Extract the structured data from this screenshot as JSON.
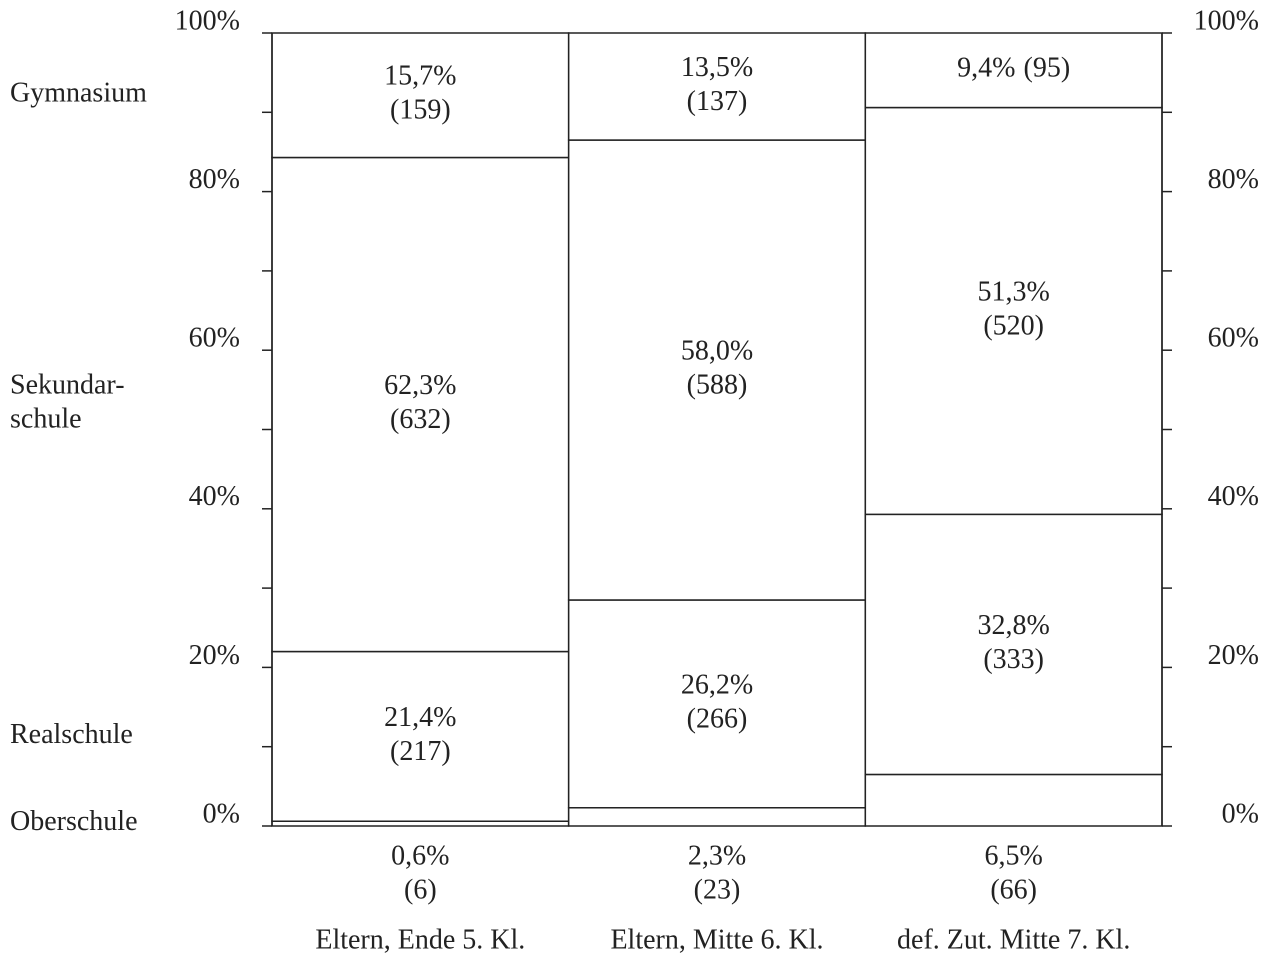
{
  "chart_data": {
    "type": "stacked_bar_100",
    "categories": [
      "Eltern, Ende 5. Kl.",
      "Eltern, Mitte 6. Kl.",
      "def. Zut. Mitte 7. Kl."
    ],
    "series": [
      {
        "name": "Oberschule",
        "color": "#ffffff",
        "values": [
          0.6,
          2.3,
          6.5
        ],
        "value_labels": [
          "0,6%",
          "2,3%",
          "6,5%"
        ],
        "count_labels": [
          "(6)",
          "(23)",
          "(66)"
        ],
        "label_position": "below"
      },
      {
        "name": "Realschule",
        "color": "#ffffff",
        "values": [
          21.4,
          26.2,
          32.8
        ],
        "value_labels": [
          "21,4%",
          "26,2%",
          "32,8%"
        ],
        "count_labels": [
          "(217)",
          "(266)",
          "(333)"
        ],
        "label_position": "inside"
      },
      {
        "name": "Sekundar-\nschule",
        "color": "#ffffff",
        "values": [
          62.3,
          58.0,
          51.3
        ],
        "value_labels": [
          "62,3%",
          "58,0%",
          "51,3%"
        ],
        "count_labels": [
          "(632)",
          "(588)",
          "(520)"
        ],
        "label_position": "inside"
      },
      {
        "name": "Gymnasium",
        "color": "#ffffff",
        "values": [
          15.7,
          13.5,
          9.4
        ],
        "value_labels": [
          "15,7%",
          "13,5%",
          "9,4%"
        ],
        "count_labels": [
          "(159)",
          "(137)",
          "(95)"
        ],
        "label_position": "inside"
      }
    ],
    "ylim": [
      0,
      100
    ],
    "yticks": [
      {
        "value": 0,
        "label": "0%"
      },
      {
        "value": 20,
        "label": "20%"
      },
      {
        "value": 40,
        "label": "40%"
      },
      {
        "value": 60,
        "label": "60%"
      },
      {
        "value": 80,
        "label": "80%"
      },
      {
        "value": 100,
        "label": "100%"
      }
    ],
    "minor_yticks": [
      10,
      30,
      50,
      70,
      90
    ],
    "right_axis": true
  }
}
